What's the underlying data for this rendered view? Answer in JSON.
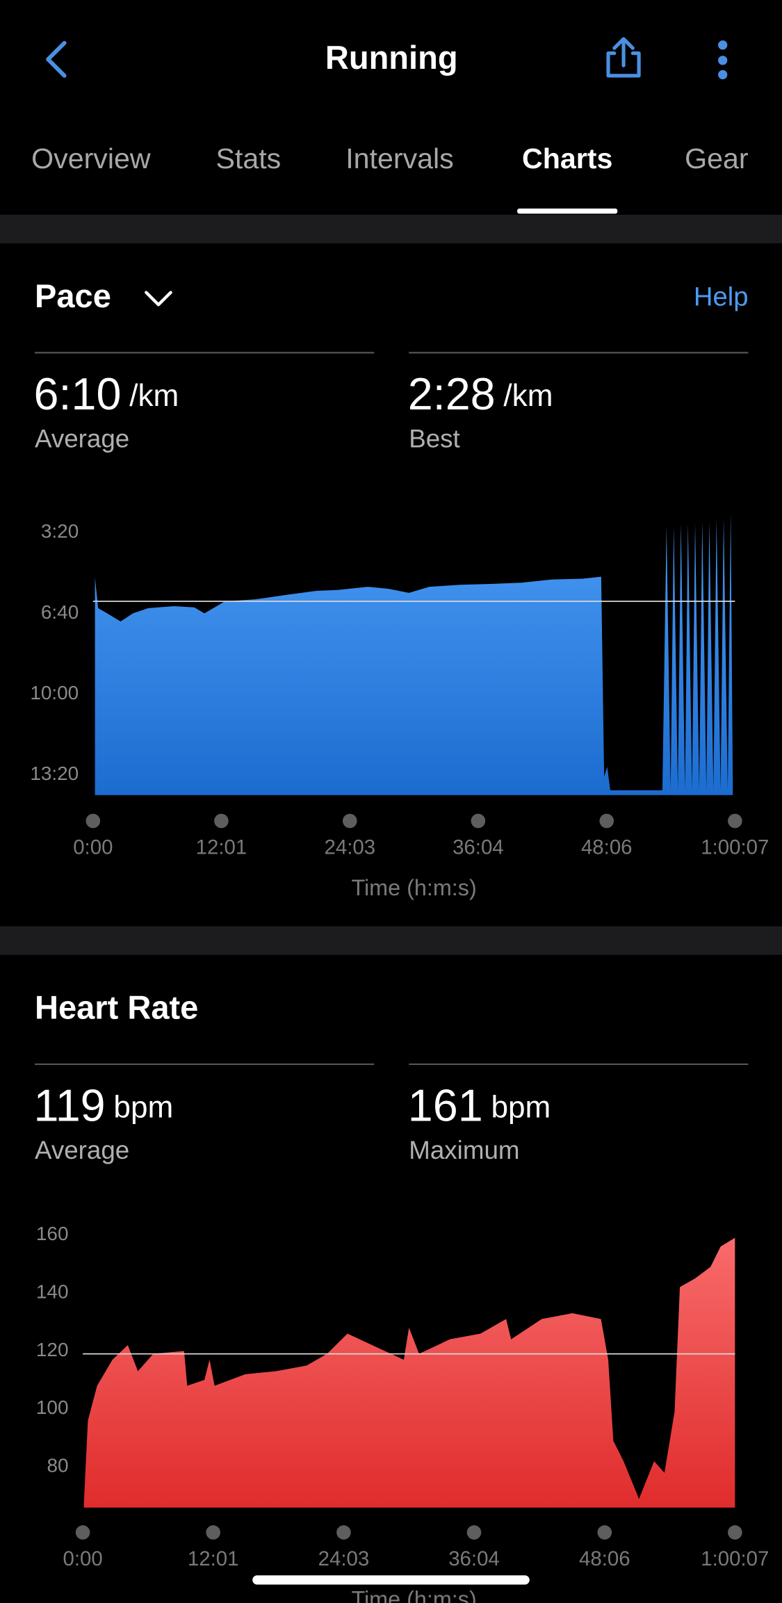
{
  "header": {
    "title": "Running"
  },
  "tabs": [
    "Overview",
    "Stats",
    "Intervals",
    "Charts",
    "Gear"
  ],
  "pace": {
    "title": "Pace",
    "help": "Help",
    "stats": [
      {
        "value": {
          "value": 370,
          "label": "6:10"
        },
        "unit": "/km",
        "label": "Average"
      },
      {
        "value": {
          "value": 148,
          "label": "2:28"
        },
        "unit": "/km",
        "label": "Best"
      }
    ],
    "chart": {
      "type": "area",
      "color": "#4a9cf5",
      "grid": false,
      "x": [
        11,
        29,
        80,
        155,
        224,
        310,
        454,
        569,
        626,
        741,
        913,
        1086,
        1258,
        1373,
        1545,
        1660,
        1775,
        1890,
        2062,
        2234,
        2407,
        2579,
        2751,
        2855,
        2872,
        2889,
        2906,
        3199,
        3222,
        3245,
        3263,
        3286,
        3303,
        3326,
        3343,
        3366,
        3383,
        3406,
        3423,
        3446,
        3463,
        3486,
        3503,
        3526,
        3543,
        3566,
        3583,
        3595
      ],
      "values": [
        311,
        387,
        400,
        420,
        400,
        387,
        382,
        385,
        400,
        370,
        365,
        354,
        344,
        342,
        334,
        339,
        349,
        334,
        329,
        327,
        324,
        316,
        314,
        309,
        805,
        780,
        838,
        838,
        185,
        838,
        185,
        838,
        177,
        838,
        177,
        838,
        177,
        838,
        172,
        838,
        172,
        838,
        167,
        838,
        165,
        838,
        150,
        838
      ],
      "xlim": [
        0,
        3607
      ],
      "xticks": [
        {
          "value": 0,
          "label": "0:00"
        },
        {
          "value": 721,
          "label": "12:01"
        },
        {
          "value": 1443,
          "label": "24:03"
        },
        {
          "value": 2164,
          "label": "36:04"
        },
        {
          "value": 2886,
          "label": "48:06"
        },
        {
          "value": 3607,
          "label": "1:00:07"
        }
      ],
      "ylim": [
        850,
        150
      ],
      "yticks": [
        {
          "value": 200,
          "label": "3:20"
        },
        {
          "value": 400,
          "label": "6:40"
        },
        {
          "value": 600,
          "label": "10:00"
        },
        {
          "value": 800,
          "label": "13:20"
        }
      ],
      "xlabel": "Time (h:m:s)"
    }
  },
  "heart_rate": {
    "title": "Heart Rate",
    "stats": [
      {
        "value": 119,
        "unit": "bpm",
        "label": "Average"
      },
      {
        "value": 161,
        "unit": "bpm",
        "label": "Maximum"
      }
    ],
    "chart": {
      "type": "area",
      "color": "#f86b6b",
      "grid": false,
      "x": [
        6,
        28,
        79,
        164,
        249,
        305,
        390,
        560,
        577,
        673,
        701,
        729,
        899,
        1069,
        1238,
        1351,
        1464,
        1634,
        1775,
        1804,
        1860,
        2030,
        2199,
        2341,
        2369,
        2538,
        2708,
        2866,
        2906,
        2934,
        2991,
        3076,
        3160,
        3217,
        3273,
        3302,
        3387,
        3472,
        3528,
        3607
      ],
      "values": [
        68,
        96,
        108,
        117,
        122,
        113,
        119,
        120,
        108,
        110,
        117,
        108,
        112,
        113,
        115,
        119,
        126,
        121,
        117,
        128,
        119,
        124,
        126,
        131,
        124,
        131,
        133,
        131,
        117,
        89,
        82,
        69,
        82,
        78,
        99,
        142,
        145,
        149,
        156,
        159
      ],
      "xlim": [
        0,
        3607
      ],
      "xticks": [
        {
          "value": 0,
          "label": "0:00"
        },
        {
          "value": 721,
          "label": "12:01"
        },
        {
          "value": 1443,
          "label": "24:03"
        },
        {
          "value": 2164,
          "label": "36:04"
        },
        {
          "value": 2886,
          "label": "48:06"
        },
        {
          "value": 3607,
          "label": "1:00:07"
        }
      ],
      "ylim": [
        66,
        162
      ],
      "yticks": [
        80,
        100,
        120,
        140,
        160
      ],
      "xlabel": "Time (h:m:s)"
    }
  }
}
